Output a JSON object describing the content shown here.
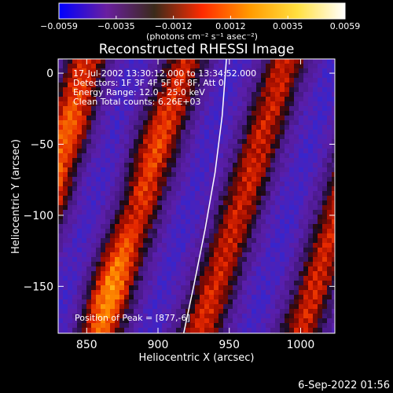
{
  "chart_data": {
    "type": "heatmap",
    "title": "Reconstructed RHESSI Image",
    "xlabel": "Heliocentric X (arcsec)",
    "ylabel": "Heliocentric Y (arcsec)",
    "xlim": [
      830,
      1024
    ],
    "ylim": [
      -183,
      10
    ],
    "x_ticks": [
      850,
      900,
      950,
      1000
    ],
    "y_ticks": [
      0,
      -50,
      -100,
      -150
    ],
    "colorbar": {
      "range": [
        -0.0059,
        0.0059
      ],
      "ticks": [
        "-0.0059",
        "-0.0035",
        "-0.0012",
        "0.0012",
        "0.0035",
        "0.0059"
      ],
      "unit_label": "(photons cm⁻² s⁻¹ asec⁻²)",
      "colors": [
        "#0000ff",
        "#6a1fa0",
        "#3a2a1a",
        "#ff2a00",
        "#ff9a00",
        "#ffe040",
        "#ffffff"
      ]
    },
    "annotations": {
      "time_range": "17-Jul-2002 13:30:12.000 to 13:34:52.000",
      "detectors": "Detectors: 1F 3F 4F 5F 6F 8F, Att 0",
      "energy_range": "Energy Range: 12.0 - 25.0 keV",
      "method": "Clean     Total counts: 6.26E+03",
      "peak": "Position of Peak = [877,-6]"
    },
    "limb_curve": [
      [
        948,
        10
      ],
      [
        945,
        -30
      ],
      [
        940,
        -70
      ],
      [
        933,
        -110
      ],
      [
        925,
        -150
      ],
      [
        918,
        -183
      ]
    ],
    "bands": [
      {
        "x_at_top": 780,
        "x_at_bottom": 720,
        "peaks": [
          [
            845,
            -100
          ],
          [
            860,
            -60
          ]
        ]
      },
      {
        "x_at_top": 850,
        "x_at_bottom": 790,
        "peaks": [
          [
            870,
            -30
          ],
          [
            850,
            -140
          ]
        ]
      },
      {
        "x_at_top": 920,
        "x_at_bottom": 860,
        "peaks": [
          [
            900,
            -30
          ],
          [
            890,
            -150
          ]
        ]
      },
      {
        "x_at_top": 990,
        "x_at_bottom": 930,
        "peaks": [
          [
            960,
            -40
          ],
          [
            945,
            -150
          ]
        ]
      },
      {
        "x_at_top": 1060,
        "x_at_bottom": 1000,
        "peaks": [
          [
            1015,
            -20
          ],
          [
            1005,
            -140
          ]
        ]
      }
    ]
  },
  "footer_date": "6-Sep-2022 01:56"
}
